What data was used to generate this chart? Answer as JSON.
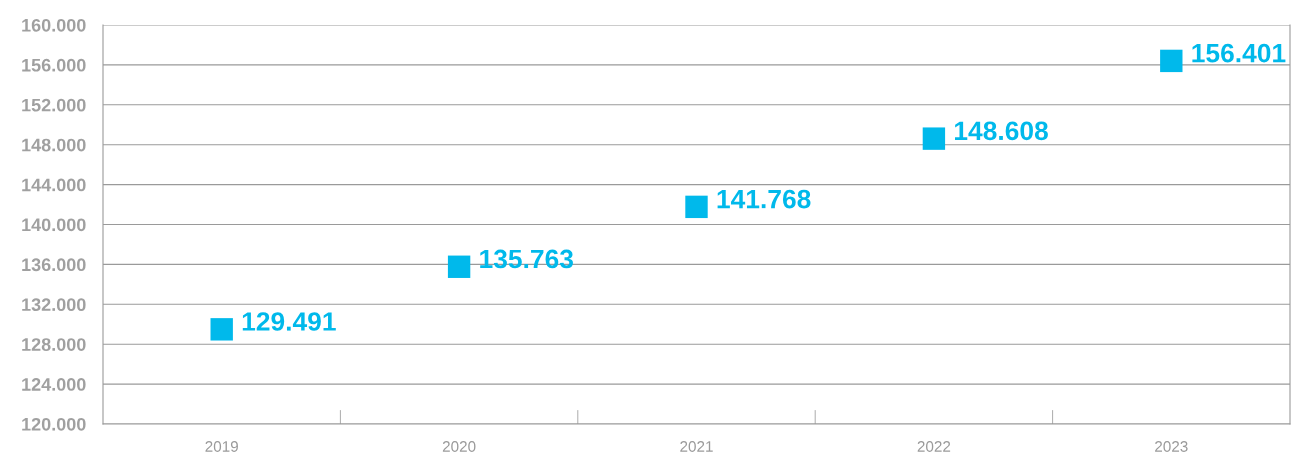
{
  "chart_data": {
    "type": "scatter",
    "categories": [
      "2019",
      "2020",
      "2021",
      "2022",
      "2023"
    ],
    "series": [
      {
        "color": "#00b9eb",
        "values": [
          129491,
          135763,
          141768,
          148608,
          156401
        ],
        "value_labels": [
          "129.491",
          "135.763",
          "141.768",
          "148.608",
          "156.401"
        ]
      }
    ],
    "marker": "square",
    "ylim": [
      120000,
      160000
    ],
    "yticks": [
      {
        "value": 120000,
        "label": "120.000"
      },
      {
        "value": 124000,
        "label": "124.000"
      },
      {
        "value": 128000,
        "label": "128.000"
      },
      {
        "value": 132000,
        "label": "132.000"
      },
      {
        "value": 136000,
        "label": "136.000"
      },
      {
        "value": 140000,
        "label": "140.000"
      },
      {
        "value": 144000,
        "label": "144.000"
      },
      {
        "value": 148000,
        "label": "148.000"
      },
      {
        "value": 152000,
        "label": "152.000"
      },
      {
        "value": 156000,
        "label": "156.000"
      },
      {
        "value": 160000,
        "label": "160.000"
      }
    ],
    "grid": "y"
  }
}
